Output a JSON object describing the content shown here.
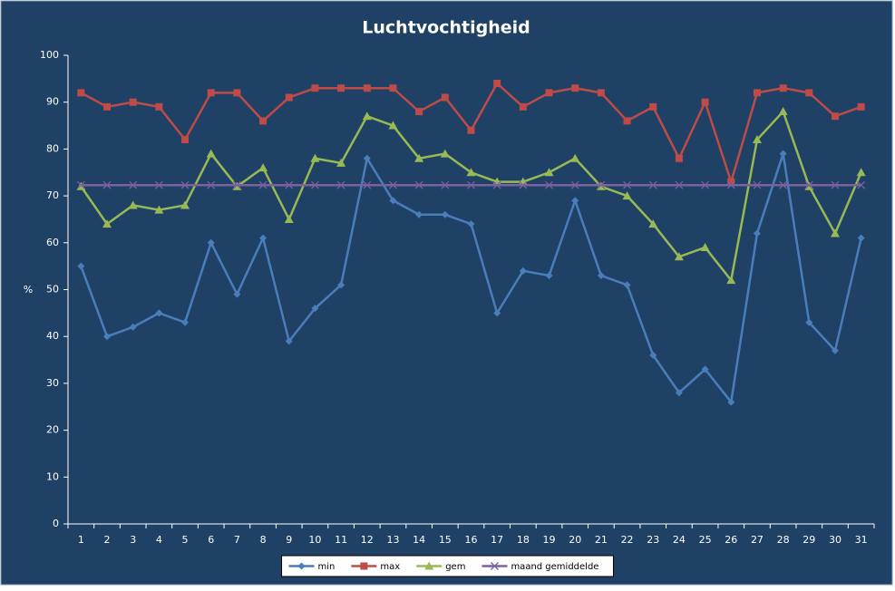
{
  "chart_data": {
    "type": "line",
    "title": "Luchtvochtigheid",
    "y_label": "%",
    "categories": [
      "1",
      "2",
      "3",
      "4",
      "5",
      "6",
      "7",
      "8",
      "9",
      "10",
      "11",
      "12",
      "13",
      "14",
      "15",
      "16",
      "17",
      "18",
      "19",
      "20",
      "21",
      "22",
      "23",
      "24",
      "25",
      "26",
      "27",
      "28",
      "29",
      "30",
      "31"
    ],
    "series": [
      {
        "name": "min",
        "color": "#4a7ebb",
        "marker": "diamond",
        "values": [
          55,
          40,
          42,
          45,
          43,
          60,
          49,
          61,
          39,
          46,
          51,
          78,
          69,
          66,
          66,
          64,
          45,
          54,
          53,
          69,
          53,
          51,
          36,
          28,
          33,
          26,
          62,
          79,
          43,
          37,
          61
        ]
      },
      {
        "name": "max",
        "color": "#be4b48",
        "marker": "square",
        "values": [
          92,
          89,
          90,
          89,
          82,
          92,
          92,
          86,
          91,
          93,
          93,
          93,
          93,
          88,
          91,
          84,
          94,
          89,
          92,
          93,
          92,
          86,
          89,
          78,
          90,
          73,
          92,
          93,
          92,
          87,
          89
        ]
      },
      {
        "name": "gem",
        "color": "#98b954",
        "marker": "triangle",
        "values": [
          72,
          64,
          68,
          67,
          68,
          79,
          72,
          76,
          65,
          78,
          77,
          87,
          85,
          78,
          79,
          75,
          73,
          73,
          75,
          78,
          72,
          70,
          64,
          57,
          59,
          52,
          82,
          88,
          72,
          62,
          75
        ]
      },
      {
        "name": "maand gemiddelde",
        "color": "#7d60a0",
        "marker": "x",
        "values": [
          72.3,
          72.3,
          72.3,
          72.3,
          72.3,
          72.3,
          72.3,
          72.3,
          72.3,
          72.3,
          72.3,
          72.3,
          72.3,
          72.3,
          72.3,
          72.3,
          72.3,
          72.3,
          72.3,
          72.3,
          72.3,
          72.3,
          72.3,
          72.3,
          72.3,
          72.3,
          72.3,
          72.3,
          72.3,
          72.3,
          72.3
        ]
      }
    ],
    "ylim": [
      0,
      100
    ],
    "yticks": [
      0,
      10,
      20,
      30,
      40,
      50,
      60,
      70,
      80,
      90,
      100
    ],
    "grid": false,
    "legend": "bottom"
  }
}
